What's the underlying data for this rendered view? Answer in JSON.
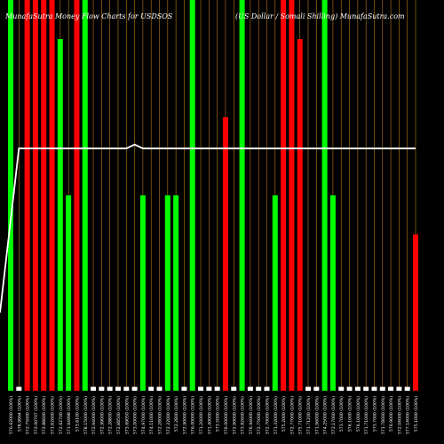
{
  "header": {
    "left_title": "MunafaSutra  Money Flow  Charts for USDSOS",
    "right_title": "(US Dollar / Somali   Shilling) MunafaSutra.com"
  },
  "chart_data": {
    "type": "bar",
    "title": "MunafaSutra  Money Flow  Charts for USDSOS",
    "ylim": [
      0,
      100
    ],
    "colors": {
      "up": "#00ff00",
      "down": "#ff0000",
      "neutral": "#ffffff",
      "grid": "#b87a18",
      "line": "#ffffff",
      "background": "#000000"
    },
    "categories": [
      "576.62000",
      "578.9994",
      "572.75000",
      "572.00707",
      "572.88600",
      "571.82600",
      "572.62700",
      "571.64998",
      "573.8100",
      "578.15000",
      "572.94000",
      "572.99000",
      "572.28800",
      "572.88500",
      "573.69050",
      "573.00000",
      "574.97000",
      "574.11000",
      "572.28000",
      "572.22000",
      "572.2800",
      "572.90000",
      "576.00000",
      "571.26000",
      "571.40000",
      "573.5000",
      "576.00000",
      "572.90000",
      "573.82600",
      "576.94000",
      "572.75000",
      "572.70000",
      "571.32000",
      "575.2000",
      "572.77000",
      "575.71000",
      "571.71200",
      "571.96000",
      "574.25000",
      "572.17000",
      "573.7000",
      "576.1000",
      "576.1000",
      "571.71000",
      "573.7000",
      "571.78000",
      "576.9000",
      "572.04000",
      "577.14000",
      "575.1000"
    ],
    "x_labels": [
      "576.62000 (100%)",
      "578.9994 (100%)",
      "572.75000 (100%)",
      "572.00707 (100%)",
      "572.88600 (100%)",
      "571.82600 (100%)",
      "572.62700 (100%)",
      "571.64998 (100%)",
      "573.8100 (100%)",
      "578.15000 (100%)",
      "572.94000 (100%)",
      "572.99000 (100%)",
      "572.28800 (100%)",
      "572.88500 (100%)",
      "573.69050 (100%)",
      "573.00000 (100%)",
      "574.97000 (100%)",
      "574.11000 (100%)",
      "572.28000 (100%)",
      "572.22000 (100%)",
      "572.2800 (100%)",
      "572.90000 (100%)",
      "576.00000 (100%)",
      "571.26000 (100%)",
      "571.40000 (100%)",
      "573.5000 (100%)",
      "576.00000 (100%)",
      "572.90000 (100%)",
      "573.82600 (100%)",
      "576.94000 (100%)",
      "572.75000 (100%)",
      "572.70000 (100%)",
      "571.32000 (100%)",
      "575.2000 (100%)",
      "572.77000 (100%)",
      "575.71000 (100%)",
      "571.71200 (100%)",
      "571.96000 (100%)",
      "574.25000 (100%)",
      "572.17000 (100%)",
      "573.7000 (100%)",
      "576.1000 (100%)",
      "576.1000 (100%)",
      "571.71000 (100%)",
      "573.7000 (100%)",
      "571.78000 (100%)",
      "576.9000 (100%)",
      "572.04000 (100%)",
      "577.14000 (100%)",
      "575.1000 (100%)"
    ],
    "series": [
      {
        "values": [
          100,
          1,
          100,
          100,
          100,
          100,
          90,
          50,
          100,
          100,
          1,
          1,
          1,
          1,
          1,
          1,
          50,
          1,
          1,
          50,
          50,
          1,
          100,
          1,
          1,
          1,
          70,
          1,
          100,
          1,
          1,
          1,
          50,
          100,
          100,
          90,
          1,
          1,
          100,
          50,
          1,
          1,
          1,
          1,
          1,
          1,
          1,
          1,
          1,
          40
        ],
        "directions": [
          "up",
          "neutral",
          "down",
          "down",
          "down",
          "down",
          "up",
          "up",
          "down",
          "up",
          "neutral",
          "neutral",
          "neutral",
          "neutral",
          "neutral",
          "neutral",
          "up",
          "neutral",
          "neutral",
          "up",
          "up",
          "neutral",
          "up",
          "neutral",
          "neutral",
          "neutral",
          "down",
          "neutral",
          "up",
          "neutral",
          "neutral",
          "neutral",
          "up",
          "down",
          "down",
          "down",
          "neutral",
          "neutral",
          "up",
          "up",
          "neutral",
          "neutral",
          "neutral",
          "neutral",
          "neutral",
          "neutral",
          "neutral",
          "neutral",
          "neutral",
          "down"
        ]
      }
    ],
    "line_series": {
      "values": [
        0,
        62,
        62,
        62,
        62,
        62,
        62,
        62,
        62,
        62,
        62,
        62,
        62,
        62,
        62,
        63,
        62,
        62,
        62,
        62,
        62,
        62,
        62,
        62,
        62,
        62,
        62,
        62,
        62,
        62,
        62,
        62,
        62,
        62,
        62,
        62,
        62,
        62,
        62,
        62,
        62,
        62,
        62,
        62,
        62,
        62,
        62,
        62,
        62,
        62
      ]
    }
  }
}
